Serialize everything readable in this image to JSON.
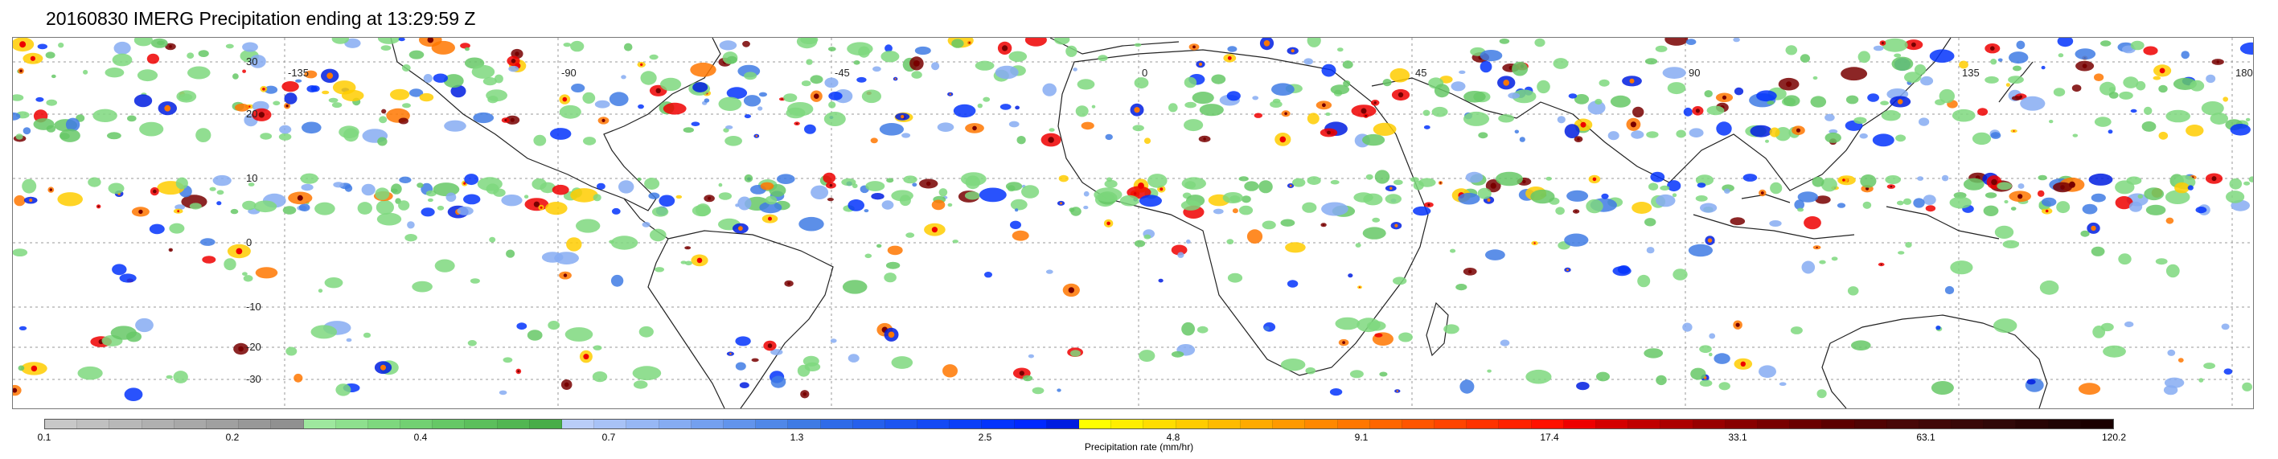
{
  "title": "20160830 IMERG Precipitation ending at 13:29:59 Z",
  "map": {
    "longitude_labels": [
      "-135",
      "-90",
      "-45",
      "0",
      "45",
      "90",
      "135",
      "180"
    ],
    "latitude_labels": [
      "30",
      "20",
      "10",
      "0",
      "-10",
      "-20",
      "-30"
    ],
    "grid": true,
    "projection": "equirectangular"
  },
  "colorbar": {
    "title": "Precipitation rate (mm/hr)",
    "labels": [
      "0.1",
      "0.2",
      "0.4",
      "0.7",
      "1.3",
      "2.5",
      "4.8",
      "9.1",
      "17.4",
      "33.1",
      "63.1",
      "120.2"
    ],
    "colors": [
      "#c8c8c8",
      "#c0c0c0",
      "#b8b8b8",
      "#b0b0b0",
      "#a8a8a8",
      "#a0a0a0",
      "#989898",
      "#909090",
      "#9ee89e",
      "#8ee08e",
      "#7ed87e",
      "#72d072",
      "#66c866",
      "#5cbf5c",
      "#52b652",
      "#48ad48",
      "#b9cdf8",
      "#a8c2f6",
      "#97b7f4",
      "#86acf2",
      "#74a0ef",
      "#6294ec",
      "#5088e8",
      "#3f7be4",
      "#2f6be8",
      "#2660ec",
      "#1d55f0",
      "#144af4",
      "#0b3ff8",
      "#0434fc",
      "#0028ff",
      "#001de0",
      "#ffff00",
      "#ffee00",
      "#ffdd00",
      "#ffcc00",
      "#ffbb00",
      "#ffaa00",
      "#ff9900",
      "#ff8800",
      "#ff7700",
      "#ff6600",
      "#ff5500",
      "#ff4400",
      "#ff3300",
      "#ff2200",
      "#ff1100",
      "#ee0000",
      "#d40000",
      "#c00000",
      "#ac0000",
      "#980000",
      "#880000",
      "#780000",
      "#6a0000",
      "#5c0000",
      "#500404",
      "#480808",
      "#400808",
      "#380808",
      "#300808",
      "#280404",
      "#200404",
      "#1a0000"
    ]
  }
}
